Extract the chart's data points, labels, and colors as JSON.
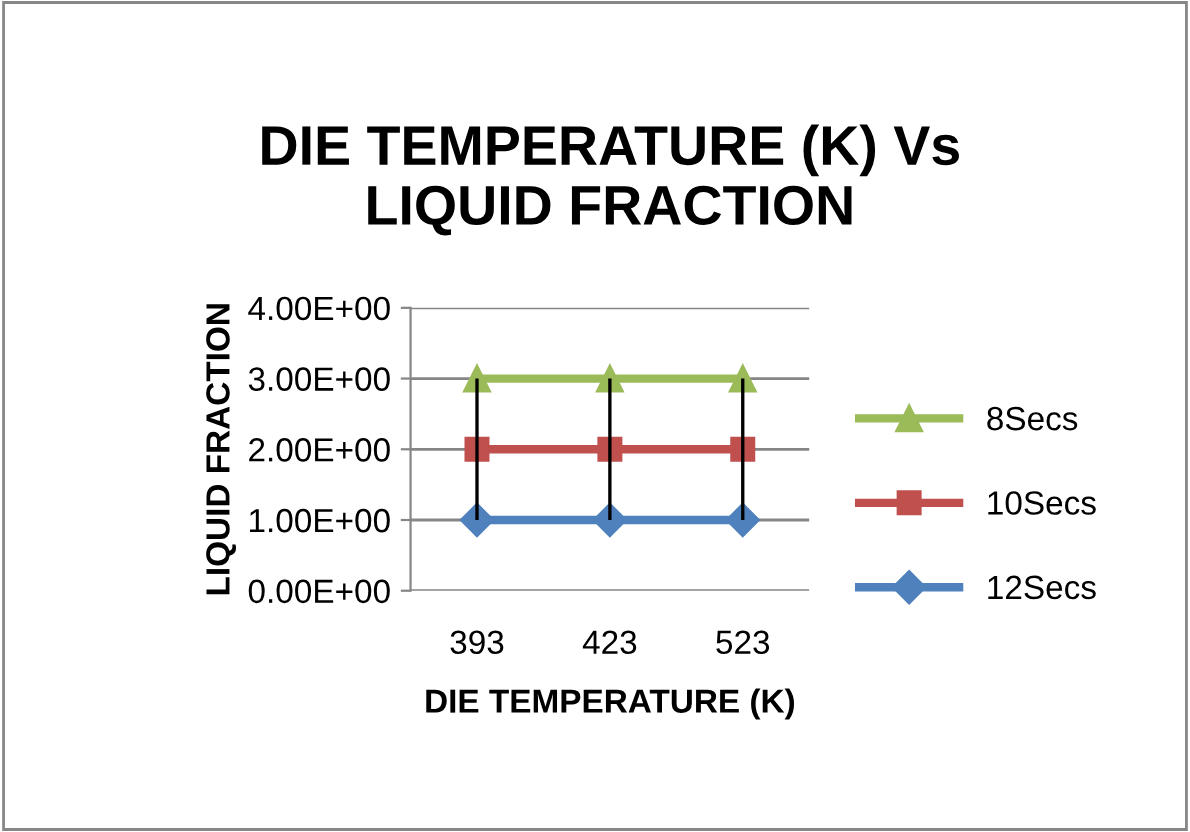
{
  "chart_data": {
    "type": "line",
    "title": "DIE TEMPERATURE (K) Vs\nLIQUID FRACTION",
    "xlabel": "DIE TEMPERATURE (K)",
    "ylabel": "LIQUID FRACTION",
    "categories": [
      "393",
      "423",
      "523"
    ],
    "series": [
      {
        "name": "8Secs",
        "color": "#9bbb59",
        "values": [
          3,
          3,
          3
        ],
        "marker": "triangle"
      },
      {
        "name": "10Secs",
        "color": "#c0504d",
        "values": [
          2,
          2,
          2
        ],
        "marker": "square",
        "errors": [
          1,
          1,
          1
        ]
      },
      {
        "name": "12Secs",
        "color": "#4f81bd",
        "values": [
          1,
          1,
          1
        ],
        "marker": "diamond"
      }
    ],
    "ylim": [
      0,
      4
    ],
    "yticks": [
      {
        "value": 0,
        "label": "0.00E+00"
      },
      {
        "value": 1,
        "label": "1.00E+00"
      },
      {
        "value": 2,
        "label": "2.00E+00"
      },
      {
        "value": 3,
        "label": "3.00E+00"
      },
      {
        "value": 4,
        "label": "4.00E+00"
      }
    ],
    "grid": "y",
    "legend": "right",
    "line_style": "solid"
  }
}
